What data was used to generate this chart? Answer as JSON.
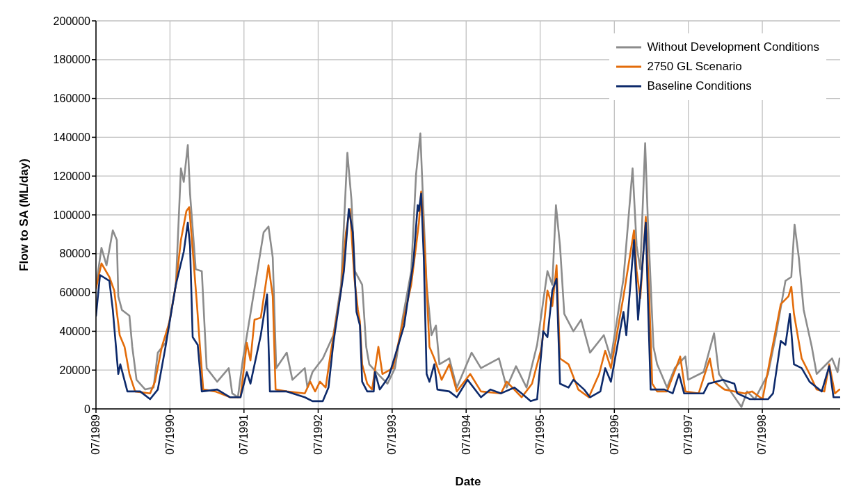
{
  "chart_data": {
    "type": "line",
    "xlabel": "Date",
    "ylabel": "Flow to SA (ML/day)",
    "xlim": [
      "1989-07-01",
      "1999-07-20"
    ],
    "xticks": [
      {
        "value": "1989-07-01",
        "label": "07/1989"
      },
      {
        "value": "1990-07-01",
        "label": "07/1990"
      },
      {
        "value": "1991-07-01",
        "label": "07/1991"
      },
      {
        "value": "1992-07-01",
        "label": "07/1992"
      },
      {
        "value": "1993-07-01",
        "label": "07/1993"
      },
      {
        "value": "1994-07-01",
        "label": "07/1994"
      },
      {
        "value": "1995-07-01",
        "label": "07/1995"
      },
      {
        "value": "1996-07-01",
        "label": "07/1996"
      },
      {
        "value": "1997-07-01",
        "label": "07/1997"
      },
      {
        "value": "1998-07-01",
        "label": "07/1998"
      }
    ],
    "ylim": [
      0,
      200000
    ],
    "yticks": [
      0,
      20000,
      40000,
      60000,
      80000,
      100000,
      120000,
      140000,
      160000,
      180000,
      200000
    ],
    "grid": true,
    "legend": "top right",
    "marker": "none",
    "line_style": "solid",
    "series": [
      {
        "name": "Without Development Conditions",
        "color": "#8c8c8c",
        "x": [
          "1989-07-01",
          "1989-07-28",
          "1989-08-22",
          "1989-09-22",
          "1989-10-12",
          "1989-10-19",
          "1989-11-06",
          "1989-12-13",
          "1989-12-27",
          "1990-01-17",
          "1990-03-01",
          "1990-04-11",
          "1990-05-02",
          "1990-06-09",
          "1990-07-30",
          "1990-08-24",
          "1990-09-07",
          "1990-09-27",
          "1990-10-08",
          "1990-11-05",
          "1990-12-05",
          "1990-12-29",
          "1991-02-19",
          "1991-04-17",
          "1991-05-04",
          "1991-06-01",
          "1991-06-25",
          "1991-08-02",
          "1991-08-22",
          "1991-10-06",
          "1991-10-30",
          "1991-11-20",
          "1991-12-07",
          "1992-01-28",
          "1992-02-25",
          "1992-04-26",
          "1992-05-09",
          "1992-06-03",
          "1992-07-24",
          "1992-09-14",
          "1992-10-22",
          "1992-11-22",
          "1992-12-12",
          "1992-12-29",
          "1993-02-03",
          "1993-02-23",
          "1993-03-10",
          "1993-05-01",
          "1993-06-08",
          "1993-07-15",
          "1993-08-22",
          "1993-10-03",
          "1993-10-27",
          "1993-11-17",
          "1993-12-04",
          "1993-12-18",
          "1994-01-11",
          "1994-02-02",
          "1994-02-19",
          "1994-04-09",
          "1994-05-16",
          "1994-07-28",
          "1994-09-12",
          "1994-12-10",
          "1995-01-17",
          "1995-03-04",
          "1995-04-25",
          "1995-06-16",
          "1995-08-06",
          "1995-08-30",
          "1995-09-17",
          "1995-10-07",
          "1995-10-28",
          "1995-12-12",
          "1996-01-19",
          "1996-03-03",
          "1996-05-10",
          "1996-06-14",
          "1996-08-15",
          "1996-09-29",
          "1996-10-19",
          "1996-11-06",
          "1996-11-30",
          "1996-12-13",
          "1997-01-10",
          "1997-01-28",
          "1997-03-18",
          "1997-04-25",
          "1997-06-16",
          "1997-06-30",
          "1997-09-14",
          "1997-11-05",
          "1997-11-29",
          "1998-01-19",
          "1998-03-20",
          "1998-04-17",
          "1998-05-25",
          "1998-07-29",
          "1998-09-06",
          "1998-10-23",
          "1998-11-21",
          "1998-12-07",
          "1998-12-28",
          "1999-01-21",
          "1999-03-02",
          "1999-03-26",
          "1999-06-10",
          "1999-07-07",
          "1999-07-17"
        ],
        "values": [
          63000,
          83000,
          74000,
          92000,
          87000,
          58000,
          51000,
          48000,
          32000,
          15000,
          10000,
          11000,
          29000,
          34000,
          64000,
          124000,
          117000,
          136000,
          111000,
          72000,
          71000,
          21000,
          14000,
          21000,
          8000,
          6000,
          25000,
          49000,
          62000,
          91000,
          94000,
          78000,
          21000,
          29000,
          15000,
          21000,
          11000,
          19000,
          26000,
          38000,
          64000,
          132000,
          108000,
          71000,
          64000,
          32000,
          23000,
          17000,
          13000,
          21000,
          47000,
          71000,
          121000,
          142000,
          98000,
          64000,
          38000,
          43000,
          23000,
          26000,
          11000,
          29000,
          21000,
          26000,
          11000,
          22000,
          11000,
          33000,
          71000,
          64000,
          105000,
          84000,
          49000,
          40000,
          46000,
          29000,
          38000,
          26000,
          67000,
          124000,
          84000,
          72000,
          137000,
          98000,
          32000,
          23000,
          11000,
          21000,
          27000,
          15000,
          19000,
          39000,
          18000,
          10000,
          1000,
          9000,
          5000,
          18000,
          38000,
          66000,
          68000,
          95000,
          78000,
          51000,
          32000,
          18000,
          26000,
          19000,
          26000
        ]
      },
      {
        "name": "2750 GL Scenario",
        "color": "#e36c0a",
        "x": [
          "1989-07-01",
          "1989-07-28",
          "1989-09-05",
          "1989-09-29",
          "1989-10-26",
          "1989-11-19",
          "1989-12-13",
          "1990-01-10",
          "1990-03-25",
          "1990-04-18",
          "1990-05-22",
          "1990-06-29",
          "1990-07-30",
          "1990-08-24",
          "1990-09-20",
          "1990-10-04",
          "1990-10-21",
          "1990-11-11",
          "1990-11-21",
          "1990-12-12",
          "1991-02-09",
          "1991-04-24",
          "1991-06-14",
          "1991-07-15",
          "1991-08-02",
          "1991-08-22",
          "1991-09-22",
          "1991-10-30",
          "1991-11-20",
          "1991-12-04",
          "1992-01-28",
          "1992-04-26",
          "1992-05-23",
          "1992-06-16",
          "1992-07-10",
          "1992-08-07",
          "1992-09-01",
          "1992-10-22",
          "1992-11-15",
          "1992-12-05",
          "1992-12-26",
          "1993-01-13",
          "1993-01-23",
          "1993-02-03",
          "1993-02-28",
          "1993-03-24",
          "1993-04-24",
          "1993-05-14",
          "1993-07-05",
          "1993-08-13",
          "1993-10-03",
          "1993-10-27",
          "1993-11-10",
          "1993-11-21",
          "1993-12-11",
          "1994-01-01",
          "1994-01-25",
          "1994-03-02",
          "1994-04-09",
          "1994-05-16",
          "1994-07-21",
          "1994-09-12",
          "1994-12-20",
          "1995-01-17",
          "1995-04-01",
          "1995-05-22",
          "1995-07-09",
          "1995-08-06",
          "1995-08-30",
          "1995-09-20",
          "1995-10-07",
          "1995-11-18",
          "1996-01-05",
          "1996-02-26",
          "1996-04-17",
          "1996-05-17",
          "1996-06-14",
          "1996-08-15",
          "1996-10-06",
          "1996-10-19",
          "1996-11-06",
          "1996-12-03",
          "1996-12-20",
          "1997-01-04",
          "1997-01-28",
          "1997-03-18",
          "1997-05-22",
          "1997-06-16",
          "1997-08-21",
          "1997-10-15",
          "1997-11-05",
          "1997-12-26",
          "1998-04-04",
          "1998-05-11",
          "1998-07-02",
          "1998-08-09",
          "1998-09-30",
          "1998-11-07",
          "1998-11-21",
          "1998-12-04",
          "1999-01-11",
          "1999-02-19",
          "1999-03-26",
          "1999-05-03",
          "1999-05-27",
          "1999-06-24",
          "1999-07-17"
        ],
        "values": [
          62000,
          75000,
          68000,
          61000,
          38000,
          32000,
          18000,
          9000,
          8000,
          14000,
          32000,
          45000,
          64000,
          87000,
          102000,
          104000,
          82000,
          54000,
          39000,
          10000,
          9000,
          6000,
          6000,
          34000,
          25000,
          46000,
          47000,
          74000,
          58000,
          10000,
          9000,
          8000,
          14000,
          9000,
          14000,
          11000,
          29000,
          61000,
          91000,
          103000,
          68000,
          51000,
          45000,
          23000,
          13000,
          10000,
          32000,
          18000,
          21000,
          40000,
          64000,
          84000,
          96000,
          112000,
          78000,
          32000,
          26000,
          15000,
          23000,
          9000,
          18000,
          9000,
          8000,
          14000,
          6000,
          13000,
          32000,
          61000,
          53000,
          74000,
          26000,
          23000,
          10000,
          6000,
          18000,
          30000,
          21000,
          58000,
          92000,
          71000,
          57000,
          99000,
          58000,
          13000,
          9000,
          9000,
          27000,
          9000,
          8000,
          26000,
          14000,
          10000,
          8000,
          9000,
          5000,
          26000,
          54000,
          58000,
          63000,
          49000,
          26000,
          18000,
          10000,
          9000,
          23000,
          8000,
          10000
        ]
      },
      {
        "name": "Baseline Conditions",
        "color": "#0d2a6b",
        "x": [
          "1989-07-01",
          "1989-07-21",
          "1989-09-05",
          "1989-09-22",
          "1989-10-19",
          "1989-10-29",
          "1989-12-03",
          "1990-02-04",
          "1990-03-25",
          "1990-05-02",
          "1990-06-09",
          "1990-07-30",
          "1990-09-07",
          "1990-09-27",
          "1990-10-08",
          "1990-10-21",
          "1990-11-15",
          "1990-12-05",
          "1991-02-19",
          "1991-04-24",
          "1991-06-14",
          "1991-07-15",
          "1991-08-02",
          "1991-09-22",
          "1991-10-23",
          "1991-11-06",
          "1992-01-28",
          "1992-04-26",
          "1992-06-03",
          "1992-07-24",
          "1992-08-21",
          "1992-09-14",
          "1992-11-05",
          "1992-11-29",
          "1992-12-19",
          "1993-01-06",
          "1993-01-23",
          "1993-02-03",
          "1993-02-28",
          "1993-04-01",
          "1993-04-07",
          "1993-05-01",
          "1993-05-28",
          "1993-06-15",
          "1993-07-29",
          "1993-08-29",
          "1993-10-14",
          "1993-11-04",
          "1993-11-10",
          "1993-11-21",
          "1993-12-04",
          "1993-12-18",
          "1994-01-01",
          "1994-01-25",
          "1994-02-09",
          "1994-04-09",
          "1994-05-16",
          "1994-07-08",
          "1994-09-12",
          "1994-10-29",
          "1994-12-20",
          "1995-02-24",
          "1995-04-01",
          "1995-05-15",
          "1995-06-16",
          "1995-07-16",
          "1995-08-06",
          "1995-08-30",
          "1995-09-20",
          "1995-10-07",
          "1995-11-18",
          "1995-12-12",
          "1996-02-03",
          "1996-03-03",
          "1996-04-23",
          "1996-05-17",
          "1996-06-14",
          "1996-08-15",
          "1996-08-29",
          "1996-10-06",
          "1996-10-26",
          "1996-12-03",
          "1996-12-13",
          "1996-12-27",
          "1997-03-05",
          "1997-04-15",
          "1997-05-16",
          "1997-06-10",
          "1997-09-14",
          "1997-10-08",
          "1997-12-19",
          "1998-02-13",
          "1998-02-27",
          "1998-05-01",
          "1998-07-29",
          "1998-08-23",
          "1998-09-30",
          "1998-10-23",
          "1998-11-14",
          "1998-12-04",
          "1999-01-11",
          "1999-02-19",
          "1999-04-20",
          "1999-05-27",
          "1999-06-17",
          "1999-07-17"
        ],
        "values": [
          48000,
          69000,
          66000,
          51000,
          18000,
          23000,
          9000,
          9000,
          5000,
          10000,
          32000,
          64000,
          81000,
          96000,
          84000,
          37000,
          33000,
          9000,
          10000,
          6000,
          6000,
          19000,
          13000,
          38000,
          59000,
          9000,
          9000,
          6000,
          4000,
          4000,
          11000,
          34000,
          71000,
          103000,
          91000,
          50000,
          43000,
          14000,
          9000,
          9000,
          19000,
          10000,
          14000,
          17000,
          32000,
          43000,
          76000,
          105000,
          102000,
          111000,
          78000,
          18000,
          14000,
          23000,
          10000,
          9000,
          6000,
          15000,
          6000,
          10000,
          8000,
          11000,
          8000,
          4000,
          5000,
          40000,
          37000,
          61000,
          67000,
          13000,
          11000,
          15000,
          10000,
          6000,
          9000,
          21000,
          14000,
          50000,
          38000,
          87000,
          46000,
          96000,
          58000,
          10000,
          10000,
          8000,
          18000,
          8000,
          8000,
          13000,
          15000,
          13000,
          8000,
          5000,
          5000,
          8000,
          35000,
          33000,
          49000,
          23000,
          21000,
          14000,
          9000,
          22000,
          6000,
          6000
        ]
      }
    ]
  }
}
